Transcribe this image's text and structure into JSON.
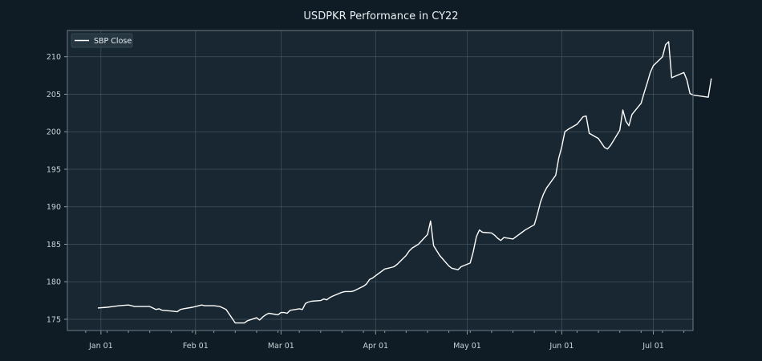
{
  "chart_data": {
    "type": "line",
    "title": "USDPKR Performance in CY22",
    "xlabel": "",
    "ylabel": "",
    "grid": true,
    "legend_placement": "top-left",
    "x_tick_labels": [
      "Jan 01",
      "Feb 01",
      "Mar 01",
      "Apr 01",
      "May 01",
      "Jun 01",
      "Jul 01"
    ],
    "y_ticks": [
      175,
      180,
      185,
      190,
      195,
      200,
      205,
      210
    ],
    "ylim": [
      173.5,
      213.5
    ],
    "xlim": [
      "2021-12-21",
      "2022-07-14"
    ],
    "series": [
      {
        "name": "SBP Close",
        "color": "#ffffff",
        "points": [
          [
            "2021-12-31",
            176.5
          ],
          [
            "2022-01-03",
            176.6
          ],
          [
            "2022-01-05",
            176.7
          ],
          [
            "2022-01-07",
            176.8
          ],
          [
            "2022-01-10",
            176.9
          ],
          [
            "2022-01-11",
            176.8
          ],
          [
            "2022-01-12",
            176.7
          ],
          [
            "2022-01-14",
            176.7
          ],
          [
            "2022-01-17",
            176.7
          ],
          [
            "2022-01-18",
            176.5
          ],
          [
            "2022-01-19",
            176.3
          ],
          [
            "2022-01-20",
            176.4
          ],
          [
            "2022-01-21",
            176.2
          ],
          [
            "2022-01-24",
            176.1
          ],
          [
            "2022-01-26",
            176.0
          ],
          [
            "2022-01-27",
            176.3
          ],
          [
            "2022-01-28",
            176.4
          ],
          [
            "2022-01-31",
            176.6
          ],
          [
            "2022-02-01",
            176.7
          ],
          [
            "2022-02-03",
            176.9
          ],
          [
            "2022-02-04",
            176.8
          ],
          [
            "2022-02-07",
            176.8
          ],
          [
            "2022-02-09",
            176.7
          ],
          [
            "2022-02-10",
            176.5
          ],
          [
            "2022-02-11",
            176.3
          ],
          [
            "2022-02-14",
            174.5
          ],
          [
            "2022-02-15",
            174.5
          ],
          [
            "2022-02-16",
            174.5
          ],
          [
            "2022-02-17",
            174.5
          ],
          [
            "2022-02-18",
            174.8
          ],
          [
            "2022-02-21",
            175.2
          ],
          [
            "2022-02-22",
            174.9
          ],
          [
            "2022-02-23",
            175.3
          ],
          [
            "2022-02-24",
            175.6
          ],
          [
            "2022-02-25",
            175.8
          ],
          [
            "2022-02-28",
            175.6
          ],
          [
            "2022-03-01",
            175.9
          ],
          [
            "2022-03-02",
            175.9
          ],
          [
            "2022-03-03",
            175.8
          ],
          [
            "2022-03-04",
            176.2
          ],
          [
            "2022-03-07",
            176.4
          ],
          [
            "2022-03-08",
            176.3
          ],
          [
            "2022-03-09",
            177.1
          ],
          [
            "2022-03-10",
            177.3
          ],
          [
            "2022-03-11",
            177.4
          ],
          [
            "2022-03-14",
            177.5
          ],
          [
            "2022-03-15",
            177.7
          ],
          [
            "2022-03-16",
            177.6
          ],
          [
            "2022-03-17",
            177.9
          ],
          [
            "2022-03-18",
            178.1
          ],
          [
            "2022-03-21",
            178.6
          ],
          [
            "2022-03-22",
            178.7
          ],
          [
            "2022-03-24",
            178.7
          ],
          [
            "2022-03-25",
            178.8
          ],
          [
            "2022-03-28",
            179.4
          ],
          [
            "2022-03-29",
            179.7
          ],
          [
            "2022-03-30",
            180.3
          ],
          [
            "2022-03-31",
            180.5
          ],
          [
            "2022-04-01",
            180.8
          ],
          [
            "2022-04-04",
            181.7
          ],
          [
            "2022-04-05",
            181.8
          ],
          [
            "2022-04-06",
            181.9
          ],
          [
            "2022-04-07",
            182.0
          ],
          [
            "2022-04-08",
            182.3
          ],
          [
            "2022-04-11",
            183.5
          ],
          [
            "2022-04-12",
            184.1
          ],
          [
            "2022-04-13",
            184.5
          ],
          [
            "2022-04-15",
            185.0
          ],
          [
            "2022-04-18",
            186.3
          ],
          [
            "2022-04-19",
            188.1
          ],
          [
            "2022-04-20",
            184.8
          ],
          [
            "2022-04-22",
            183.5
          ],
          [
            "2022-04-25",
            182.1
          ],
          [
            "2022-04-26",
            181.8
          ],
          [
            "2022-04-27",
            181.7
          ],
          [
            "2022-04-28",
            181.6
          ],
          [
            "2022-04-29",
            182.0
          ],
          [
            "2022-05-02",
            182.5
          ],
          [
            "2022-05-03",
            184.0
          ],
          [
            "2022-05-04",
            186.0
          ],
          [
            "2022-05-05",
            186.9
          ],
          [
            "2022-05-06",
            186.6
          ],
          [
            "2022-05-09",
            186.5
          ],
          [
            "2022-05-10",
            186.2
          ],
          [
            "2022-05-11",
            185.8
          ],
          [
            "2022-05-12",
            185.5
          ],
          [
            "2022-05-13",
            185.9
          ],
          [
            "2022-05-16",
            185.7
          ],
          [
            "2022-05-17",
            186.0
          ],
          [
            "2022-05-18",
            186.3
          ],
          [
            "2022-05-19",
            186.6
          ],
          [
            "2022-05-20",
            186.9
          ],
          [
            "2022-05-23",
            187.6
          ],
          [
            "2022-05-24",
            189.0
          ],
          [
            "2022-05-25",
            190.6
          ],
          [
            "2022-05-26",
            191.7
          ],
          [
            "2022-05-27",
            192.5
          ],
          [
            "2022-05-30",
            194.2
          ],
          [
            "2022-05-31",
            196.5
          ],
          [
            "2022-06-01",
            198.0
          ],
          [
            "2022-06-02",
            200.0
          ],
          [
            "2022-06-03",
            200.3
          ],
          [
            "2022-06-06",
            201.0
          ],
          [
            "2022-06-07",
            201.5
          ],
          [
            "2022-06-08",
            202.0
          ],
          [
            "2022-06-09",
            202.1
          ],
          [
            "2022-06-10",
            199.8
          ],
          [
            "2022-06-13",
            199.1
          ],
          [
            "2022-06-14",
            198.5
          ],
          [
            "2022-06-15",
            197.9
          ],
          [
            "2022-06-16",
            197.7
          ],
          [
            "2022-06-17",
            198.2
          ],
          [
            "2022-06-20",
            200.2
          ],
          [
            "2022-06-21",
            202.9
          ],
          [
            "2022-06-22",
            201.4
          ],
          [
            "2022-06-23",
            200.8
          ],
          [
            "2022-06-24",
            202.3
          ],
          [
            "2022-06-27",
            203.8
          ],
          [
            "2022-06-28",
            205.2
          ],
          [
            "2022-06-29",
            206.5
          ],
          [
            "2022-06-30",
            207.9
          ],
          [
            "2022-07-01",
            208.8
          ],
          [
            "2022-07-04",
            210.0
          ],
          [
            "2022-07-05",
            211.6
          ],
          [
            "2022-07-06",
            212.0
          ],
          [
            "2022-07-07",
            207.2
          ],
          [
            "2022-07-11",
            207.9
          ],
          [
            "2022-07-12",
            206.9
          ],
          [
            "2022-07-13",
            205.1
          ],
          [
            "2022-07-14",
            204.9
          ],
          [
            "2022-07-19",
            204.6
          ],
          [
            "2022-07-20",
            207.1
          ]
        ]
      }
    ]
  }
}
